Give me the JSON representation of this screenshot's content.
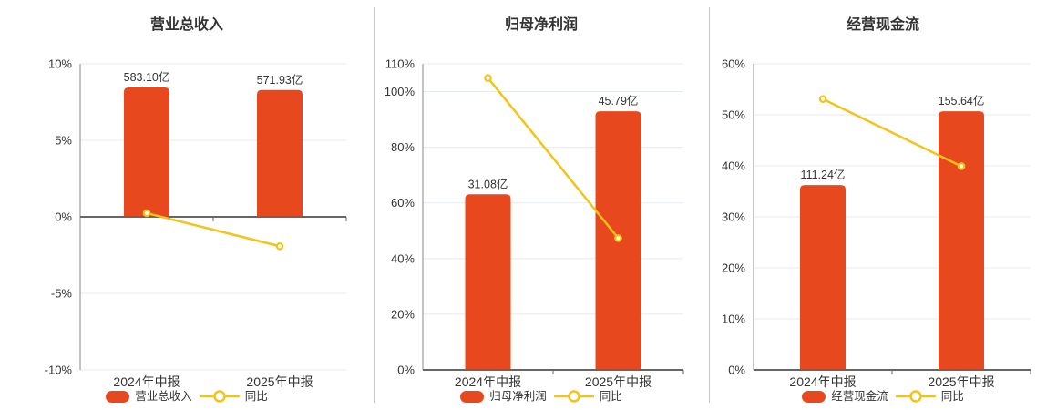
{
  "colors": {
    "bar": "#e8481d",
    "line": "#f3c318",
    "grid": "#e4eaf1",
    "axis_line": "#888888",
    "zero_line": "#666666",
    "text": "#333333",
    "divider": "#cccccc"
  },
  "chart_data": [
    {
      "type": "bar+line",
      "title": "营业总收入",
      "categories": [
        "2024年中报",
        "2025年中报"
      ],
      "bars": {
        "name": "营业总收入",
        "values": [
          583.1,
          571.93
        ],
        "labels": [
          "583.10亿",
          "571.93亿"
        ]
      },
      "line": {
        "name": "同比",
        "values_pct": [
          0.24,
          -1.92
        ]
      },
      "y_axis": {
        "min": -10,
        "max": 10,
        "ticks": [
          {
            "v": 10,
            "label": "10%"
          },
          {
            "v": 5,
            "label": "5%"
          },
          {
            "v": 0,
            "label": "0%"
          },
          {
            "v": -5,
            "label": "-5%"
          },
          {
            "v": -10,
            "label": "-10%"
          }
        ]
      },
      "legend_position": "bottom",
      "grid": true
    },
    {
      "type": "bar+line",
      "title": "归母净利润",
      "categories": [
        "2024年中报",
        "2025年中报"
      ],
      "bars": {
        "name": "归母净利润",
        "values": [
          31.08,
          45.79
        ],
        "labels": [
          "31.08亿",
          "45.79亿"
        ]
      },
      "line": {
        "name": "同比",
        "values_pct": [
          104.9,
          47.33
        ]
      },
      "y_axis": {
        "min": 0,
        "max": 110,
        "ticks": [
          {
            "v": 110,
            "label": "110%"
          },
          {
            "v": 100,
            "label": "100%"
          },
          {
            "v": 80,
            "label": "80%"
          },
          {
            "v": 60,
            "label": "60%"
          },
          {
            "v": 40,
            "label": "40%"
          },
          {
            "v": 20,
            "label": "20%"
          },
          {
            "v": 0,
            "label": "0%"
          }
        ]
      },
      "legend_position": "bottom",
      "grid": true
    },
    {
      "type": "bar+line",
      "title": "经营现金流",
      "categories": [
        "2024年中报",
        "2025年中报"
      ],
      "bars": {
        "name": "经营现金流",
        "values": [
          111.24,
          155.64
        ],
        "labels": [
          "111.24亿",
          "155.64亿"
        ]
      },
      "line": {
        "name": "同比",
        "values_pct": [
          53.1,
          39.92
        ]
      },
      "y_axis": {
        "min": 0,
        "max": 60,
        "ticks": [
          {
            "v": 60,
            "label": "60%"
          },
          {
            "v": 50,
            "label": "50%"
          },
          {
            "v": 40,
            "label": "40%"
          },
          {
            "v": 30,
            "label": "30%"
          },
          {
            "v": 20,
            "label": "20%"
          },
          {
            "v": 10,
            "label": "10%"
          },
          {
            "v": 0,
            "label": "0%"
          }
        ]
      },
      "legend_position": "bottom",
      "grid": true
    }
  ]
}
